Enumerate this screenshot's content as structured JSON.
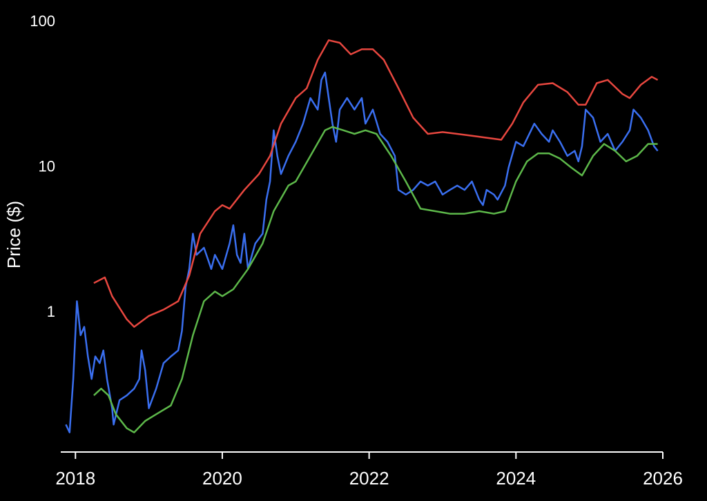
{
  "chart_data": {
    "type": "line",
    "ylabel": "Price ($)",
    "log_y": true,
    "xlim": [
      2017.8,
      2026.0
    ],
    "xticks": [
      2018,
      2020,
      2022,
      2024,
      2026
    ],
    "ylim": [
      0.11,
      100
    ],
    "yticks": [
      1,
      10,
      100
    ],
    "series": [
      {
        "color": "#3a6ff0",
        "x": [
          2017.87,
          2017.92,
          2017.97,
          2018.02,
          2018.07,
          2018.12,
          2018.17,
          2018.22,
          2018.27,
          2018.33,
          2018.38,
          2018.43,
          2018.5,
          2018.52,
          2018.6,
          2018.7,
          2018.8,
          2018.87,
          2018.9,
          2018.95,
          2019.0,
          2019.1,
          2019.2,
          2019.3,
          2019.4,
          2019.45,
          2019.5,
          2019.55,
          2019.6,
          2019.65,
          2019.75,
          2019.85,
          2019.9,
          2020.0,
          2020.1,
          2020.15,
          2020.2,
          2020.25,
          2020.3,
          2020.35,
          2020.45,
          2020.55,
          2020.6,
          2020.65,
          2020.7,
          2020.75,
          2020.8,
          2020.9,
          2021.0,
          2021.1,
          2021.2,
          2021.3,
          2021.35,
          2021.4,
          2021.45,
          2021.5,
          2021.55,
          2021.6,
          2021.7,
          2021.8,
          2021.9,
          2021.95,
          2022.05,
          2022.15,
          2022.25,
          2022.35,
          2022.4,
          2022.5,
          2022.6,
          2022.7,
          2022.8,
          2022.9,
          2023.0,
          2023.1,
          2023.2,
          2023.3,
          2023.4,
          2023.5,
          2023.55,
          2023.6,
          2023.7,
          2023.75,
          2023.85,
          2023.9,
          2024.0,
          2024.1,
          2024.25,
          2024.35,
          2024.45,
          2024.5,
          2024.6,
          2024.7,
          2024.8,
          2024.85,
          2024.9,
          2024.95,
          2025.05,
          2025.15,
          2025.25,
          2025.35,
          2025.45,
          2025.55,
          2025.6,
          2025.7,
          2025.8,
          2025.88,
          2025.93
        ],
        "values": [
          0.17,
          0.15,
          0.35,
          1.2,
          0.7,
          0.8,
          0.5,
          0.35,
          0.5,
          0.45,
          0.55,
          0.35,
          0.22,
          0.17,
          0.25,
          0.27,
          0.3,
          0.35,
          0.55,
          0.4,
          0.22,
          0.3,
          0.45,
          0.5,
          0.55,
          0.75,
          1.5,
          2.0,
          3.5,
          2.5,
          2.8,
          2.0,
          2.5,
          2.0,
          3.0,
          4.0,
          2.5,
          2.2,
          3.5,
          2.0,
          3.0,
          3.5,
          6.0,
          8.0,
          18,
          12,
          9,
          12,
          15,
          20,
          30,
          25,
          40,
          45,
          30,
          20,
          15,
          25,
          30,
          25,
          30,
          20,
          25,
          17,
          15,
          12,
          7,
          6.5,
          7,
          8,
          7.5,
          8,
          6.5,
          7,
          7.5,
          7,
          8,
          6,
          5.5,
          7,
          6.5,
          6,
          7.5,
          10,
          15,
          14,
          20,
          17,
          15,
          18,
          15,
          12,
          13,
          11,
          14,
          25,
          22,
          15,
          17,
          13,
          15,
          18,
          25,
          22,
          18,
          14,
          13
        ]
      },
      {
        "color": "#e8473f",
        "x": [
          2018.25,
          2018.4,
          2018.5,
          2018.7,
          2018.8,
          2019.0,
          2019.2,
          2019.4,
          2019.55,
          2019.7,
          2019.9,
          2020.0,
          2020.1,
          2020.3,
          2020.5,
          2020.65,
          2020.8,
          2021.0,
          2021.15,
          2021.3,
          2021.45,
          2021.6,
          2021.75,
          2021.9,
          2022.05,
          2022.2,
          2022.4,
          2022.6,
          2022.8,
          2023.0,
          2023.2,
          2023.4,
          2023.6,
          2023.8,
          2023.95,
          2024.1,
          2024.3,
          2024.5,
          2024.7,
          2024.85,
          2024.95,
          2025.1,
          2025.25,
          2025.45,
          2025.55,
          2025.7,
          2025.85,
          2025.93
        ],
        "values": [
          1.6,
          1.75,
          1.3,
          0.9,
          0.8,
          0.95,
          1.05,
          1.2,
          1.8,
          3.5,
          5,
          5.5,
          5.2,
          7,
          9,
          12,
          20,
          30,
          35,
          55,
          75,
          72,
          60,
          65,
          65,
          55,
          35,
          22,
          17,
          17.5,
          17,
          16.5,
          16,
          15.5,
          20,
          28,
          37,
          38,
          33,
          27,
          27,
          38,
          40,
          32,
          30,
          37,
          42,
          40
        ]
      },
      {
        "color": "#5db84a",
        "x": [
          2018.25,
          2018.35,
          2018.45,
          2018.55,
          2018.7,
          2018.8,
          2018.95,
          2019.1,
          2019.3,
          2019.45,
          2019.6,
          2019.75,
          2019.9,
          2020.0,
          2020.15,
          2020.35,
          2020.55,
          2020.7,
          2020.9,
          2021.0,
          2021.2,
          2021.4,
          2021.5,
          2021.65,
          2021.8,
          2021.95,
          2022.1,
          2022.3,
          2022.5,
          2022.7,
          2022.9,
          2023.1,
          2023.3,
          2023.5,
          2023.7,
          2023.85,
          2024.0,
          2024.15,
          2024.3,
          2024.45,
          2024.6,
          2024.75,
          2024.9,
          2025.05,
          2025.2,
          2025.35,
          2025.5,
          2025.65,
          2025.8,
          2025.93
        ],
        "values": [
          0.27,
          0.3,
          0.27,
          0.2,
          0.16,
          0.15,
          0.18,
          0.2,
          0.23,
          0.35,
          0.7,
          1.2,
          1.4,
          1.3,
          1.45,
          2,
          3,
          5,
          7.5,
          8,
          12,
          18,
          19,
          18,
          17,
          18,
          17,
          12,
          8,
          5.2,
          5,
          4.8,
          4.8,
          5,
          4.8,
          5,
          8,
          11,
          12.5,
          12.5,
          11.5,
          10,
          8.8,
          12,
          14.5,
          13,
          11,
          12,
          14.5,
          14.5
        ]
      }
    ]
  }
}
